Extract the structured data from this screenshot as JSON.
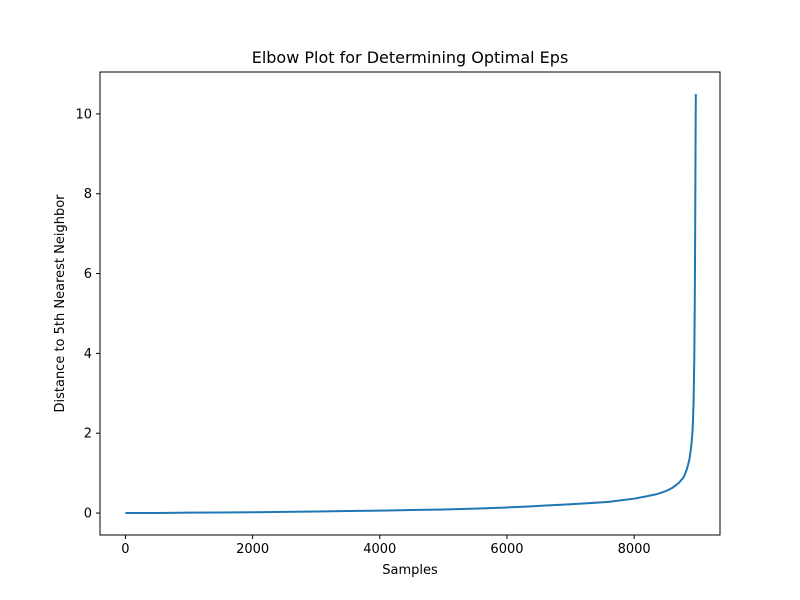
{
  "chart_data": {
    "type": "line",
    "title": "Elbow Plot for Determining Optimal Eps",
    "xlabel": "Samples",
    "ylabel": "Distance to 5th Nearest Neighbor",
    "xlim": [
      -400,
      9350
    ],
    "ylim": [
      -0.55,
      11.05
    ],
    "x_ticks": [
      0,
      2000,
      4000,
      6000,
      8000
    ],
    "y_ticks": [
      0,
      2,
      4,
      6,
      8,
      10
    ],
    "grid": false,
    "legend": "none",
    "series": [
      {
        "color": "#1f77b4",
        "x": [
          0,
          500,
          1000,
          1500,
          2000,
          2500,
          3000,
          3500,
          4000,
          4500,
          5000,
          5500,
          6000,
          6300,
          6500,
          7000,
          7300,
          7600,
          7800,
          8000,
          8200,
          8350,
          8500,
          8600,
          8700,
          8780,
          8830,
          8870,
          8900,
          8920,
          8935,
          8945,
          8952,
          8958,
          8962,
          8966,
          8970
        ],
        "y": [
          0.0,
          0.0,
          0.01,
          0.015,
          0.02,
          0.03,
          0.04,
          0.05,
          0.06,
          0.075,
          0.09,
          0.11,
          0.14,
          0.16,
          0.18,
          0.22,
          0.25,
          0.28,
          0.32,
          0.36,
          0.42,
          0.47,
          0.55,
          0.63,
          0.75,
          0.9,
          1.1,
          1.35,
          1.7,
          2.1,
          2.8,
          3.8,
          5.0,
          6.5,
          8.0,
          9.5,
          10.5
        ]
      }
    ]
  }
}
